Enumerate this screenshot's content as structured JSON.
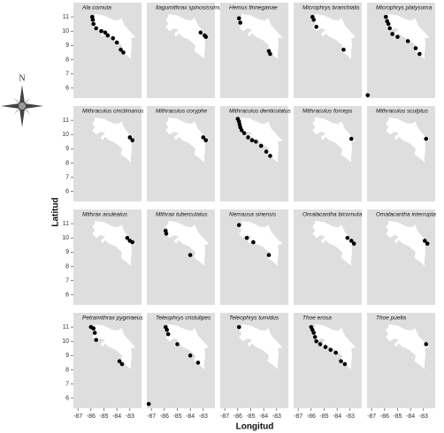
{
  "map": {
    "compass_label": "N",
    "x_label": "Longitud",
    "y_label": "Latitud",
    "xlim": [
      -87.35,
      -82.1
    ],
    "ylim": [
      5.3,
      12
    ],
    "xticks": [
      -87,
      -86,
      -85,
      -84,
      -83
    ],
    "yticks": [
      6,
      7,
      8,
      9,
      10,
      11
    ],
    "panels": [
      {
        "title": "Ala cornuta",
        "points": [
          [
            -85.9,
            11.0
          ],
          [
            -85.85,
            10.8
          ],
          [
            -85.8,
            10.5
          ],
          [
            -85.6,
            10.2
          ],
          [
            -85.2,
            10.0
          ],
          [
            -84.9,
            9.9
          ],
          [
            -84.7,
            9.7
          ],
          [
            -84.3,
            9.5
          ],
          [
            -84.0,
            9.2
          ],
          [
            -83.7,
            8.7
          ],
          [
            -83.5,
            8.5
          ]
        ]
      },
      {
        "title": "Ilagumithrax spinosissimus",
        "points": [
          [
            -83.2,
            9.9
          ],
          [
            -82.9,
            9.7
          ],
          [
            -82.8,
            9.6
          ]
        ]
      },
      {
        "title": "Hemus finneganae",
        "points": [
          [
            -85.9,
            10.9
          ],
          [
            -85.8,
            10.6
          ],
          [
            -83.6,
            8.6
          ],
          [
            -83.5,
            8.4
          ]
        ]
      },
      {
        "title": "Microphrys branchialis",
        "points": [
          [
            -85.9,
            11.0
          ],
          [
            -85.8,
            10.8
          ],
          [
            -85.6,
            10.3
          ],
          [
            -83.5,
            8.7
          ]
        ]
      },
      {
        "title": "Microphrys platysoma",
        "points": [
          [
            -85.9,
            11.0
          ],
          [
            -85.8,
            10.7
          ],
          [
            -85.7,
            10.5
          ],
          [
            -85.6,
            10.2
          ],
          [
            -85.4,
            9.8
          ],
          [
            -85.0,
            9.6
          ],
          [
            -84.2,
            9.3
          ],
          [
            -83.6,
            8.8
          ],
          [
            -83.3,
            8.4
          ],
          [
            -87.3,
            5.5
          ]
        ]
      },
      {
        "title": "Mithraculus cinctimanus",
        "points": [
          [
            -83.0,
            9.8
          ],
          [
            -82.8,
            9.6
          ]
        ]
      },
      {
        "title": "Mithraculus coryphe",
        "points": [
          [
            -83.0,
            9.8
          ],
          [
            -82.8,
            9.6
          ]
        ]
      },
      {
        "title": "Mithraculus denticulatus",
        "points": [
          [
            -86.0,
            11.1
          ],
          [
            -85.9,
            10.9
          ],
          [
            -85.85,
            10.7
          ],
          [
            -85.8,
            10.5
          ],
          [
            -85.7,
            10.3
          ],
          [
            -85.5,
            10.1
          ],
          [
            -85.2,
            9.8
          ],
          [
            -84.9,
            9.6
          ],
          [
            -84.6,
            9.5
          ],
          [
            -84.2,
            9.2
          ],
          [
            -83.8,
            8.8
          ],
          [
            -83.5,
            8.5
          ]
        ]
      },
      {
        "title": "Mithraculus forceps",
        "points": [
          [
            -82.9,
            9.7
          ]
        ]
      },
      {
        "title": "Mithraculus sculptus",
        "points": [
          [
            -82.8,
            9.7
          ]
        ]
      },
      {
        "title": "Mithrax aculeatus",
        "points": [
          [
            -83.2,
            10.0
          ],
          [
            -83.0,
            9.8
          ],
          [
            -82.8,
            9.7
          ]
        ]
      },
      {
        "title": "Mithrax tuberculatus",
        "points": [
          [
            -85.9,
            10.5
          ],
          [
            -85.85,
            10.3
          ],
          [
            -84.0,
            8.8
          ]
        ]
      },
      {
        "title": "Nemausa sinensis",
        "points": [
          [
            -85.9,
            10.9
          ],
          [
            -85.3,
            10.0
          ],
          [
            -84.8,
            9.7
          ],
          [
            -83.6,
            8.8
          ]
        ]
      },
      {
        "title": "Omalacantha bicornuta",
        "points": [
          [
            -83.2,
            10.0
          ],
          [
            -82.9,
            9.8
          ],
          [
            -82.7,
            9.6
          ]
        ]
      },
      {
        "title": "Omalacantha interrupta",
        "points": [
          [
            -82.9,
            9.8
          ],
          [
            -82.7,
            9.6
          ]
        ]
      },
      {
        "title": "Petramithrax pygmaeus",
        "points": [
          [
            -86.0,
            11.0
          ],
          [
            -85.8,
            10.9
          ],
          [
            -85.7,
            10.6
          ],
          [
            -85.6,
            10.1
          ],
          [
            -83.8,
            8.6
          ],
          [
            -83.6,
            8.4
          ]
        ]
      },
      {
        "title": "Teleophrys cristulipes",
        "points": [
          [
            -85.9,
            11.0
          ],
          [
            -85.8,
            10.8
          ],
          [
            -85.7,
            10.5
          ],
          [
            -85.0,
            9.8
          ],
          [
            -84.0,
            9.0
          ],
          [
            -83.4,
            8.5
          ],
          [
            -87.2,
            5.6
          ]
        ]
      },
      {
        "title": "Teleophrys tumidus",
        "points": [
          [
            -85.9,
            11.0
          ]
        ]
      },
      {
        "title": "Thoe erosa",
        "points": [
          [
            -86.0,
            11.0
          ],
          [
            -85.9,
            10.8
          ],
          [
            -85.8,
            10.6
          ],
          [
            -85.7,
            10.3
          ],
          [
            -85.6,
            10.0
          ],
          [
            -85.3,
            9.8
          ],
          [
            -84.9,
            9.6
          ],
          [
            -84.5,
            9.4
          ],
          [
            -84.1,
            9.2
          ],
          [
            -83.7,
            8.6
          ],
          [
            -83.4,
            8.4
          ]
        ]
      },
      {
        "title": "Thoe puella",
        "points": [
          [
            -82.8,
            9.8
          ]
        ]
      }
    ]
  }
}
